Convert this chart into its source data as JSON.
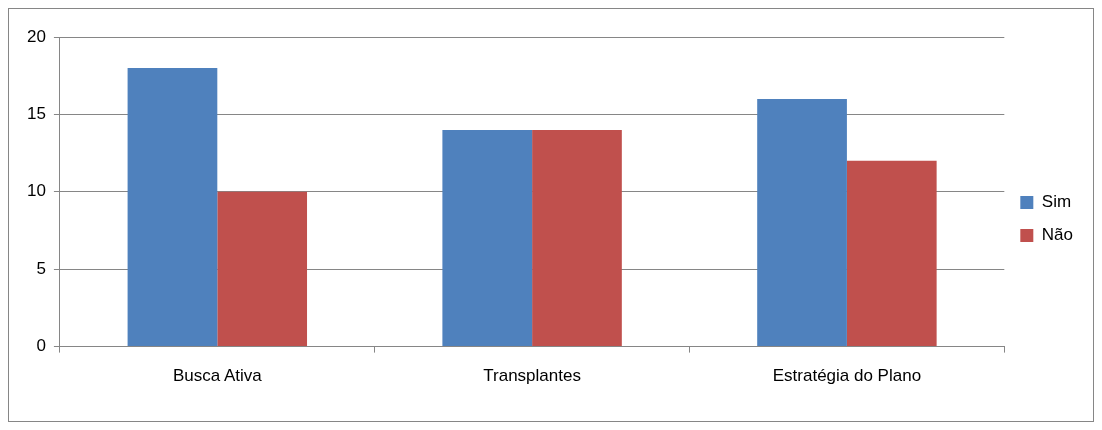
{
  "chart_data": {
    "type": "bar",
    "categories": [
      "Busca Ativa",
      "Transplantes",
      "Estratégia do Plano"
    ],
    "series": [
      {
        "name": "Sim",
        "color": "#4f81bd",
        "values": [
          18,
          14,
          16
        ]
      },
      {
        "name": "Não",
        "color": "#c0504d",
        "values": [
          10,
          14,
          12
        ]
      }
    ],
    "ylim": [
      0,
      20
    ],
    "yticks": [
      0,
      5,
      10,
      15,
      20
    ],
    "grid": "y",
    "legend": "right"
  }
}
